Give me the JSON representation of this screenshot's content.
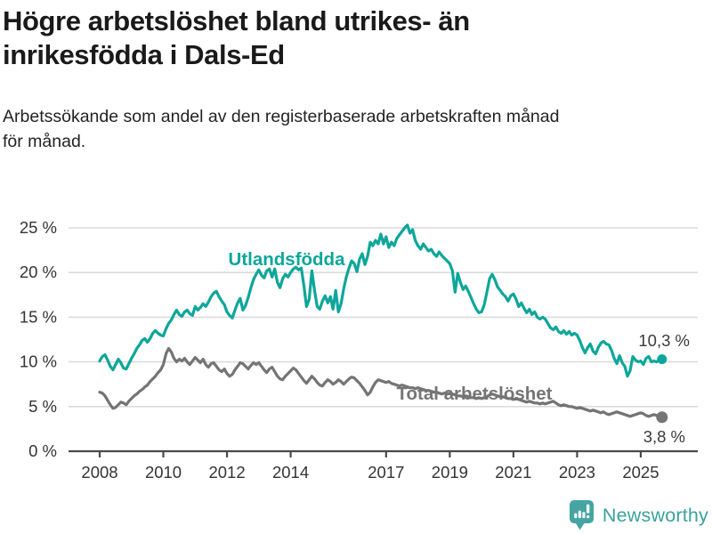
{
  "header": {
    "title_lines": [
      "Högre arbetslöshet bland utrikes- än",
      "inrikesfödda i Dals-Ed"
    ],
    "subtitle_lines": [
      "Arbetssökande som andel av den registerbaserade arbetskraften månad",
      "för månad."
    ]
  },
  "footer": {
    "brand_name": "Newsworthy",
    "brand_icon": "bar-chart-speech-bubble",
    "brand_color": "#46a5a2"
  },
  "chart_data": {
    "type": "line",
    "title": "Högre arbetslöshet bland utrikes- än inrikesfödda i Dals-Ed",
    "subtitle": "Arbetssökande som andel av den registerbaserade arbetskraften månad för månad.",
    "xlabel": "",
    "ylabel": "",
    "grid": true,
    "legend_position": "inline-labels",
    "x_axis": {
      "tick_years": [
        2008,
        2010,
        2012,
        2014,
        2017,
        2019,
        2021,
        2023,
        2025
      ],
      "range": [
        2007.7,
        2026.1
      ]
    },
    "y_axis": {
      "tick_values": [
        0,
        5,
        10,
        15,
        20,
        25
      ],
      "tick_labels": [
        "0 %",
        "5 %",
        "10 %",
        "15 %",
        "20 %",
        "25 %"
      ],
      "range": [
        0,
        25.5
      ]
    },
    "x_start_year": 2008.0,
    "x_step_years": 0.0833333,
    "unit": "percent",
    "series": [
      {
        "name": "Utlandsfödda",
        "color": "#0da69a",
        "end_value": 10.3,
        "end_label": "10,3 %",
        "values": [
          10.1,
          10.6,
          10.8,
          10.2,
          9.5,
          9.1,
          9.7,
          10.3,
          9.9,
          9.3,
          9.2,
          9.8,
          10.4,
          10.9,
          11.5,
          11.9,
          12.4,
          12.6,
          12.2,
          12.6,
          13.2,
          13.5,
          13.2,
          13.0,
          12.9,
          13.7,
          14.3,
          14.7,
          15.3,
          15.8,
          15.3,
          15.1,
          15.6,
          15.8,
          15.4,
          15.2,
          16.2,
          15.8,
          16.1,
          16.5,
          16.2,
          16.7,
          17.3,
          17.7,
          17.9,
          17.3,
          16.8,
          16.4,
          15.6,
          15.2,
          14.9,
          15.8,
          16.6,
          17.1,
          15.8,
          16.3,
          17.2,
          18.3,
          19.2,
          19.8,
          20.3,
          19.7,
          19.4,
          20.2,
          20.4,
          19.5,
          20.4,
          18.9,
          18.3,
          19.3,
          19.8,
          19.5,
          20.0,
          20.4,
          20.6,
          20.3,
          20.5,
          18.5,
          16.2,
          17.0,
          20.2,
          18.0,
          16.2,
          15.9,
          16.8,
          17.4,
          16.6,
          17.3,
          15.9,
          18.0,
          15.6,
          16.5,
          18.2,
          19.5,
          20.5,
          21.3,
          21.0,
          20.1,
          21.5,
          22.1,
          20.9,
          21.8,
          23.4,
          23.0,
          23.6,
          23.2,
          24.3,
          23.2,
          24.0,
          22.8,
          23.4,
          23.0,
          23.8,
          24.2,
          24.6,
          25.0,
          25.3,
          24.4,
          24.8,
          23.6,
          23.0,
          22.6,
          23.2,
          22.8,
          22.4,
          22.6,
          22.1,
          21.8,
          22.3,
          21.9,
          21.6,
          21.3,
          21.0,
          20.2,
          17.8,
          19.9,
          18.9,
          18.1,
          18.5,
          17.9,
          17.2,
          16.5,
          15.9,
          15.5,
          15.6,
          16.4,
          17.8,
          19.3,
          19.8,
          19.2,
          18.4,
          18.0,
          17.6,
          17.3,
          16.8,
          17.4,
          17.6,
          17.0,
          16.2,
          16.6,
          16.0,
          15.5,
          15.9,
          15.3,
          15.6,
          15.0,
          14.8,
          15.0,
          14.8,
          14.3,
          13.8,
          13.6,
          13.9,
          13.4,
          13.2,
          13.5,
          13.1,
          13.4,
          13.0,
          13.2,
          13.0,
          12.4,
          11.6,
          11.0,
          11.6,
          12.0,
          11.2,
          10.9,
          11.6,
          12.1,
          12.3,
          12.0,
          11.9,
          11.3,
          10.4,
          9.8,
          10.7,
          9.9,
          9.5,
          8.4,
          9.0,
          10.6,
          10.2,
          10.0,
          10.1,
          9.7,
          10.4,
          10.6,
          10.0,
          10.1,
          10.0,
          10.2,
          10.3
        ]
      },
      {
        "name": "Total arbetslöshet",
        "color": "#747474",
        "end_value": 3.8,
        "end_label": "3,8 %",
        "values": [
          6.6,
          6.5,
          6.2,
          5.7,
          5.2,
          4.8,
          4.9,
          5.2,
          5.5,
          5.4,
          5.2,
          5.6,
          5.9,
          6.2,
          6.4,
          6.7,
          6.9,
          7.2,
          7.4,
          7.8,
          8.1,
          8.4,
          8.8,
          9.1,
          9.7,
          10.9,
          11.5,
          11.1,
          10.4,
          10.0,
          10.3,
          10.1,
          10.4,
          10.0,
          9.7,
          10.1,
          10.5,
          10.2,
          9.9,
          10.3,
          9.7,
          9.4,
          9.8,
          9.9,
          9.5,
          9.1,
          8.9,
          9.2,
          8.7,
          8.4,
          8.6,
          9.1,
          9.5,
          9.9,
          9.8,
          9.5,
          9.2,
          9.6,
          9.9,
          9.7,
          9.9,
          9.5,
          9.1,
          8.8,
          9.2,
          9.4,
          8.9,
          8.4,
          8.1,
          8.0,
          8.4,
          8.7,
          9.0,
          9.3,
          9.1,
          8.7,
          8.3,
          7.9,
          7.6,
          8.0,
          8.4,
          8.1,
          7.7,
          7.4,
          7.3,
          7.7,
          8.0,
          7.8,
          7.5,
          7.7,
          8.0,
          7.8,
          7.5,
          7.8,
          8.1,
          8.3,
          8.2,
          7.9,
          7.6,
          7.2,
          6.8,
          6.3,
          6.6,
          7.2,
          7.7,
          8.0,
          7.9,
          7.8,
          7.7,
          7.8,
          7.6,
          7.5,
          7.4,
          7.3,
          7.4,
          7.3,
          7.2,
          7.1,
          7.1,
          7.0,
          7.1,
          7.0,
          6.9,
          6.8,
          6.8,
          6.7,
          6.6,
          6.6,
          6.5,
          6.4,
          6.5,
          6.4,
          6.5,
          6.4,
          6.3,
          6.2,
          6.2,
          6.1,
          6.2,
          6.1,
          6.0,
          6.0,
          5.9,
          6.0,
          5.9,
          6.0,
          6.1,
          6.3,
          6.4,
          6.3,
          6.2,
          6.1,
          6.1,
          6.0,
          5.9,
          5.9,
          5.8,
          5.9,
          5.8,
          5.7,
          5.6,
          5.5,
          5.6,
          5.5,
          5.4,
          5.4,
          5.3,
          5.4,
          5.3,
          5.4,
          5.5,
          5.6,
          5.4,
          5.2,
          5.1,
          5.2,
          5.1,
          5.0,
          5.0,
          4.9,
          4.8,
          4.9,
          4.8,
          4.7,
          4.6,
          4.5,
          4.6,
          4.5,
          4.4,
          4.3,
          4.4,
          4.2,
          4.1,
          4.2,
          4.3,
          4.4,
          4.3,
          4.2,
          4.1,
          4.0,
          3.9,
          4.0,
          4.1,
          4.2,
          4.3,
          4.2,
          4.0,
          3.9,
          4.0,
          4.1,
          4.0,
          3.9,
          3.8
        ]
      }
    ]
  }
}
